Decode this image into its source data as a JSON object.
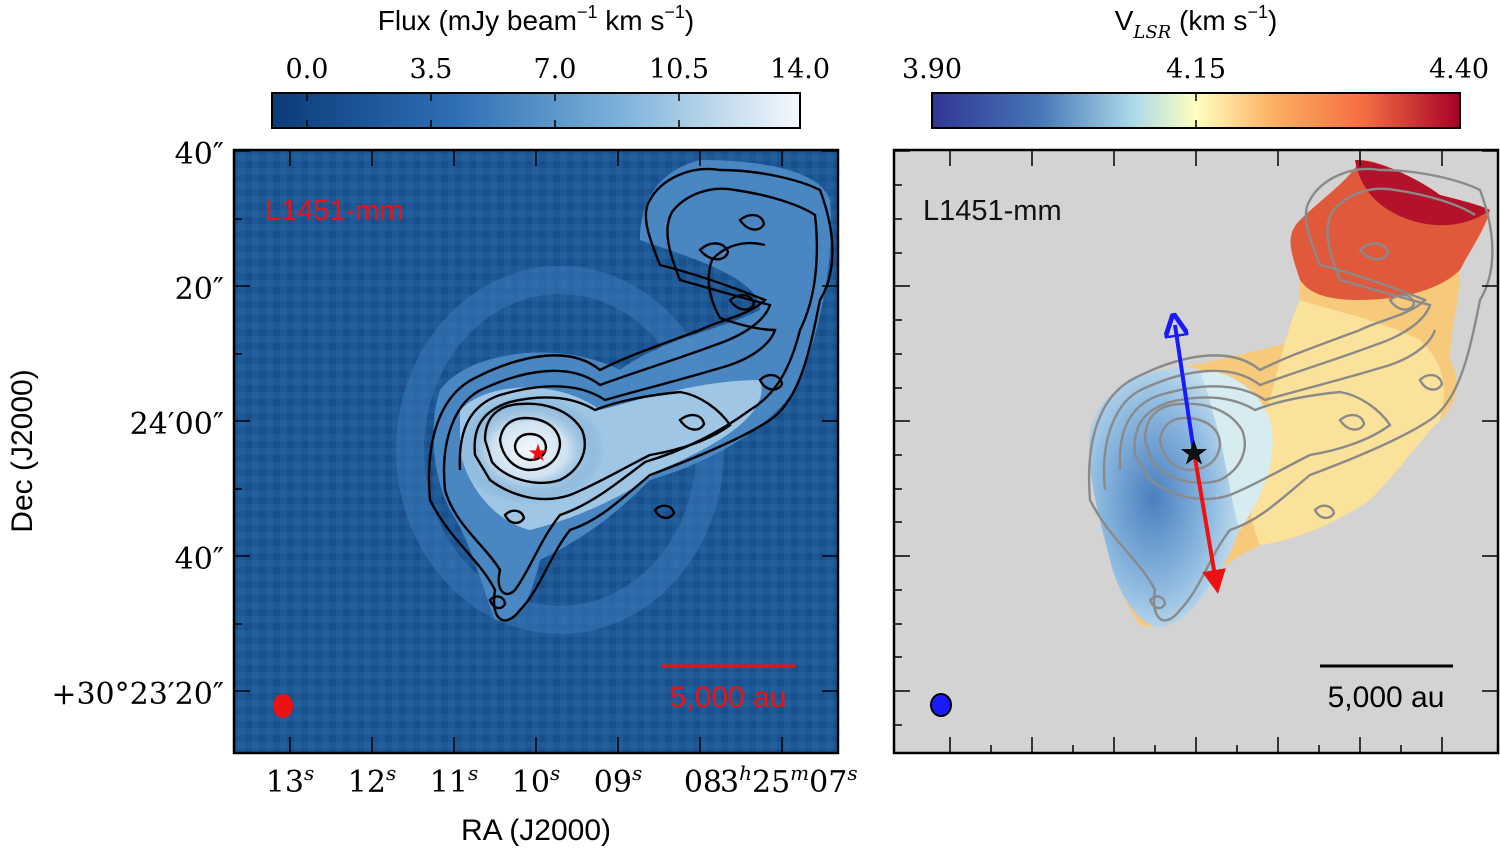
{
  "figure": {
    "left_panel": {
      "colorbar_title": "Flux (mJy beam",
      "colorbar_title_exp": "−1",
      "colorbar_title_rest": " km s",
      "colorbar_title_exp2": "−1",
      "colorbar_title_close": ")",
      "colorbar_ticks": [
        "0.0",
        "3.5",
        "7.0",
        "10.5",
        "14.0"
      ],
      "source_label": "L1451-mm",
      "scalebar_label": "5,000 au",
      "y_tick_labels": [
        "40″",
        "20″",
        "24′00″",
        "40″",
        "+30°23′20″"
      ],
      "x_tick_labels": [
        {
          "main": "13",
          "sup": "s"
        },
        {
          "main": "12",
          "sup": "s"
        },
        {
          "main": "11",
          "sup": "s"
        },
        {
          "main": "10",
          "sup": "s"
        },
        {
          "main": "09",
          "sup": "s"
        },
        {
          "main": "08",
          "sup": ""
        },
        {
          "main": "3",
          "sup": "h"
        },
        {
          "main": "25",
          "sup": "m"
        },
        {
          "main": "07",
          "sup": "s"
        }
      ],
      "xlabel": "RA (J2000)",
      "ylabel": "Dec (J2000)"
    },
    "right_panel": {
      "colorbar_title_v": "V",
      "colorbar_title_sub": "LSR",
      "colorbar_title_rest": " (km s",
      "colorbar_title_exp": "−1",
      "colorbar_title_close": ")",
      "colorbar_ticks": [
        "3.90",
        "4.15",
        "4.40"
      ],
      "source_label": "L1451-mm",
      "scalebar_label": "5,000 au"
    },
    "colors": {
      "flux_background": "#1e5a9a",
      "flux_bright": "#eef4fb",
      "panel_gray": "#d3d3d3",
      "outflow_blue": "#1a1aff",
      "outflow_red": "#ee1111",
      "annotation_red": "#ee1111",
      "contour_black": "#000000",
      "contour_gray": "#8a8a8a"
    },
    "icons": {
      "protostar": "star-icon",
      "beam": "ellipse-icon"
    }
  }
}
